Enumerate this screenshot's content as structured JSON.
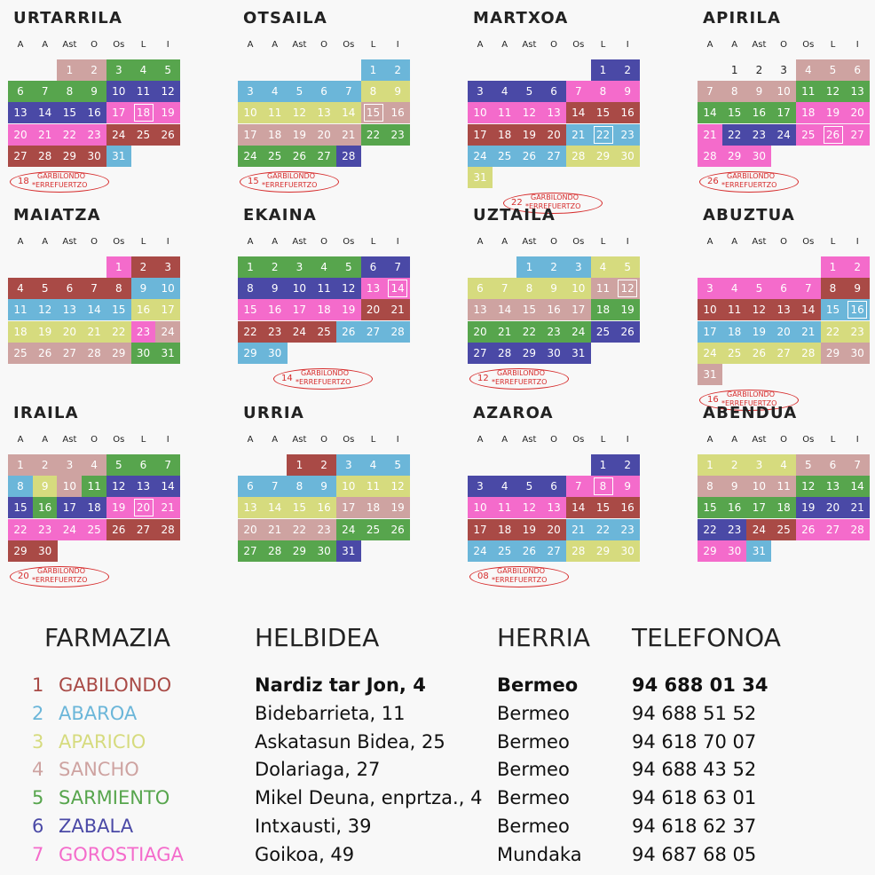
{
  "weekdays": [
    "A",
    "A",
    "Ast",
    "O",
    "Os",
    "L",
    "I"
  ],
  "colors": {
    "1": "#a94a46",
    "2": "#6bb6d9",
    "3": "#d6db7e",
    "4": "#cea3a1",
    "5": "#57a54d",
    "6": "#4a49a6",
    "7": "#f46bcb",
    "0": "transparent"
  },
  "note_line1": "GARBILONDO",
  "note_line2": "*ERREFUERTZO",
  "months": [
    {
      "name": "URTARRILA",
      "start": 2,
      "days": 31,
      "today": 18,
      "note": "18",
      "colors": [
        4,
        4,
        5,
        5,
        5,
        5,
        5,
        5,
        5,
        6,
        6,
        6,
        6,
        6,
        6,
        6,
        7,
        7,
        7,
        7,
        7,
        7,
        7,
        1,
        1,
        1,
        1,
        1,
        1,
        1,
        2
      ]
    },
    {
      "name": "OTSAILA",
      "start": 5,
      "days": 28,
      "today": 15,
      "note": "15",
      "colors": [
        2,
        2,
        2,
        2,
        2,
        2,
        2,
        3,
        3,
        3,
        3,
        3,
        3,
        3,
        4,
        4,
        4,
        4,
        4,
        4,
        4,
        5,
        5,
        5,
        5,
        5,
        5,
        6
      ]
    },
    {
      "name": "MARTXOA",
      "start": 5,
      "days": 31,
      "today": 22,
      "note": "22",
      "colors": [
        6,
        6,
        6,
        6,
        6,
        6,
        7,
        7,
        7,
        7,
        7,
        7,
        7,
        1,
        1,
        1,
        1,
        1,
        1,
        1,
        2,
        2,
        2,
        2,
        2,
        2,
        2,
        3,
        3,
        3,
        3
      ]
    },
    {
      "name": "APIRILA",
      "start": 1,
      "days": 30,
      "today": 26,
      "note": "26",
      "colors": [
        0,
        0,
        0,
        4,
        4,
        4,
        4,
        4,
        4,
        4,
        5,
        5,
        5,
        5,
        5,
        5,
        5,
        7,
        7,
        7,
        7,
        6,
        6,
        6,
        7,
        7,
        7,
        7,
        7,
        7
      ]
    },
    {
      "name": "MAIATZA",
      "start": 4,
      "days": 31,
      "today": null,
      "note": null,
      "colors": [
        7,
        1,
        1,
        1,
        1,
        1,
        1,
        1,
        2,
        2,
        2,
        2,
        2,
        2,
        2,
        3,
        3,
        3,
        3,
        3,
        3,
        3,
        7,
        4,
        4,
        4,
        4,
        4,
        4,
        5,
        5
      ]
    },
    {
      "name": "EKAINA",
      "start": 0,
      "days": 30,
      "today": 14,
      "note": "14",
      "colors": [
        5,
        5,
        5,
        5,
        5,
        6,
        6,
        6,
        6,
        6,
        6,
        6,
        7,
        7,
        7,
        7,
        7,
        7,
        7,
        1,
        1,
        1,
        1,
        1,
        1,
        2,
        2,
        2,
        2,
        2
      ]
    },
    {
      "name": "UZTAILA",
      "start": 2,
      "days": 31,
      "today": 12,
      "note": "12",
      "colors": [
        2,
        2,
        2,
        3,
        3,
        3,
        3,
        3,
        3,
        3,
        4,
        4,
        4,
        4,
        4,
        4,
        4,
        5,
        5,
        5,
        5,
        5,
        5,
        5,
        6,
        6,
        6,
        6,
        6,
        6,
        6
      ]
    },
    {
      "name": "ABUZTUA",
      "start": 5,
      "days": 31,
      "today": 16,
      "note": "16",
      "colors": [
        7,
        7,
        7,
        7,
        7,
        7,
        7,
        1,
        1,
        1,
        1,
        1,
        1,
        1,
        2,
        2,
        2,
        2,
        2,
        2,
        2,
        3,
        3,
        3,
        3,
        3,
        3,
        3,
        4,
        4,
        4
      ]
    },
    {
      "name": "IRAILA",
      "start": 0,
      "days": 30,
      "today": 20,
      "note": "20",
      "colors": [
        4,
        4,
        4,
        4,
        5,
        5,
        5,
        2,
        3,
        4,
        5,
        6,
        6,
        6,
        6,
        5,
        6,
        6,
        7,
        7,
        7,
        7,
        7,
        7,
        7,
        1,
        1,
        1,
        1,
        1
      ]
    },
    {
      "name": "URRIA",
      "start": 2,
      "days": 31,
      "today": null,
      "note": null,
      "colors": [
        1,
        1,
        2,
        2,
        2,
        2,
        2,
        2,
        2,
        3,
        3,
        3,
        3,
        3,
        3,
        3,
        4,
        4,
        4,
        4,
        4,
        4,
        4,
        5,
        5,
        5,
        5,
        5,
        5,
        5,
        6
      ]
    },
    {
      "name": "AZAROA",
      "start": 5,
      "days": 30,
      "today": 8,
      "note": "08",
      "colors": [
        6,
        6,
        6,
        6,
        6,
        6,
        7,
        7,
        7,
        7,
        7,
        7,
        7,
        1,
        1,
        1,
        1,
        1,
        1,
        1,
        2,
        2,
        2,
        2,
        2,
        2,
        2,
        3,
        3,
        3
      ]
    },
    {
      "name": "ABENDUA",
      "start": 0,
      "days": 31,
      "today": null,
      "note": null,
      "colors": [
        3,
        3,
        3,
        3,
        4,
        4,
        4,
        4,
        4,
        4,
        4,
        5,
        5,
        5,
        5,
        5,
        5,
        5,
        6,
        6,
        6,
        6,
        6,
        1,
        1,
        7,
        7,
        7,
        7,
        7,
        2
      ]
    }
  ],
  "legend": {
    "headers": {
      "farmazia": "FARMAZIA",
      "helbidea": "HELBIDEA",
      "herria": "HERRIA",
      "telefonoa": "TELEFONOA"
    },
    "rows": [
      {
        "num": "1",
        "name": "GABILONDO",
        "address": "Nardiz tar Jon, 4",
        "town": "Bermeo",
        "phone": "94 688 01 34",
        "color": "#a94a46",
        "bold": true
      },
      {
        "num": "2",
        "name": "ABAROA",
        "address": "Bidebarrieta, 11",
        "town": "Bermeo",
        "phone": "94 688 51 52",
        "color": "#6bb6d9",
        "bold": false
      },
      {
        "num": "3",
        "name": "APARICIO",
        "address": "Askatasun Bidea, 25",
        "town": "Bermeo",
        "phone": "94 618 70 07",
        "color": "#d6db7e",
        "bold": false
      },
      {
        "num": "4",
        "name": "SANCHO",
        "address": "Dolariaga, 27",
        "town": "Bermeo",
        "phone": "94 688 43 52",
        "color": "#cea3a1",
        "bold": false
      },
      {
        "num": "5",
        "name": "SARMIENTO",
        "address": "Mikel Deuna, enprtza., 4",
        "town": "Bermeo",
        "phone": "94 618 63 01",
        "color": "#57a54d",
        "bold": false
      },
      {
        "num": "6",
        "name": "ZABALA",
        "address": "Intxausti, 39",
        "town": "Bermeo",
        "phone": "94 618 62 37",
        "color": "#4a49a6",
        "bold": false
      },
      {
        "num": "7",
        "name": "GOROSTIAGA",
        "address": "Goikoa, 49",
        "town": "Mundaka",
        "phone": "94 687 68 05",
        "color": "#f46bcb",
        "bold": false
      }
    ]
  }
}
